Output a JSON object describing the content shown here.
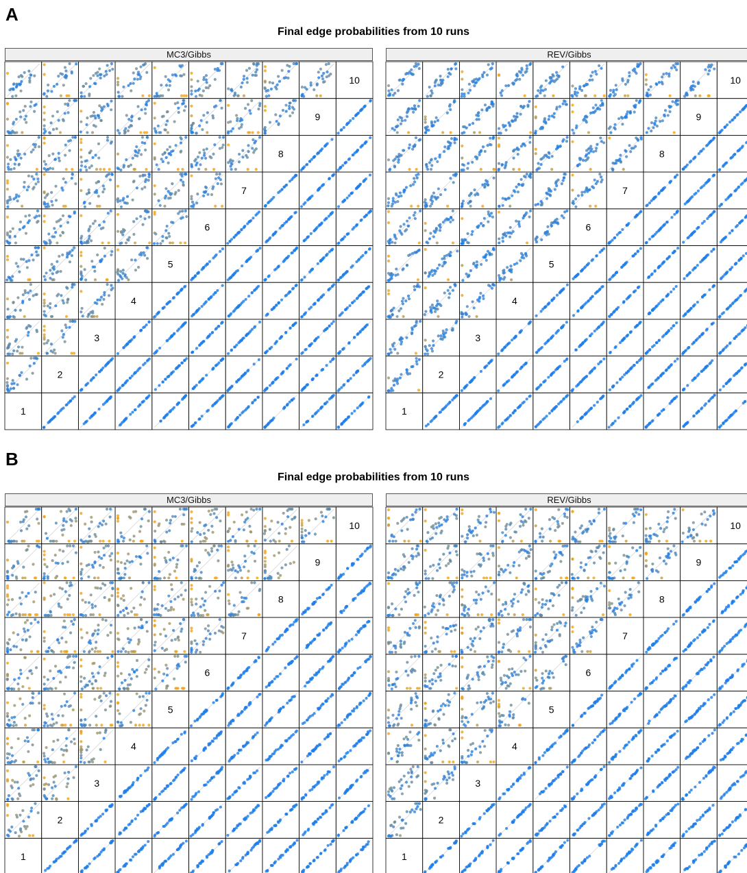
{
  "figure": {
    "colors": {
      "low": "#1f7ee8",
      "high": "#f0a418",
      "grid": "#000000",
      "diag": "#c8c8c8"
    },
    "panels": [
      {
        "letter": "A",
        "title": "Final edge probabilities from 10 runs",
        "facets": [
          "MC3/Gibbs",
          "REV/Gibbs"
        ]
      },
      {
        "letter": "B",
        "title": "Final edge probabilities from 10 runs",
        "facets": [
          "MC3/Gibbs",
          "REV/Gibbs"
        ]
      }
    ]
  },
  "chart_data": [
    {
      "type": "scatter",
      "title": "Final edge probabilities from 10 runs",
      "panel": "A",
      "facets": [
        "MC3/Gibbs",
        "REV/Gibbs"
      ],
      "matrix_labels": [
        "1",
        "2",
        "3",
        "4",
        "5",
        "6",
        "7",
        "8",
        "9",
        "10"
      ],
      "layout": "pairs matrix; runs 1-10 on diagonal; upper-left triangle shows run-vs-run scatter, lower-right shows alternate comparison",
      "xlim": [
        0,
        1
      ],
      "ylim": [
        0,
        1
      ],
      "spread_upper": {
        "MC3/Gibbs": 0.55,
        "REV/Gibbs": 0.3
      },
      "spread_lower": {
        "MC3/Gibbs": 0.02,
        "REV/Gibbs": 0.02
      }
    },
    {
      "type": "scatter",
      "title": "Final edge probabilities from 10 runs",
      "panel": "B",
      "facets": [
        "MC3/Gibbs",
        "REV/Gibbs"
      ],
      "matrix_labels": [
        "1",
        "2",
        "3",
        "4",
        "5",
        "6",
        "7",
        "8",
        "9",
        "10"
      ],
      "layout": "pairs matrix; runs 1-10 on diagonal; upper-left triangle shows run-vs-run scatter, lower-right shows alternate comparison",
      "xlim": [
        0,
        1
      ],
      "ylim": [
        0,
        1
      ],
      "spread_upper": {
        "MC3/Gibbs": 0.85,
        "REV/Gibbs": 0.55
      },
      "spread_lower": {
        "MC3/Gibbs": 0.06,
        "REV/Gibbs": 0.06
      }
    }
  ]
}
